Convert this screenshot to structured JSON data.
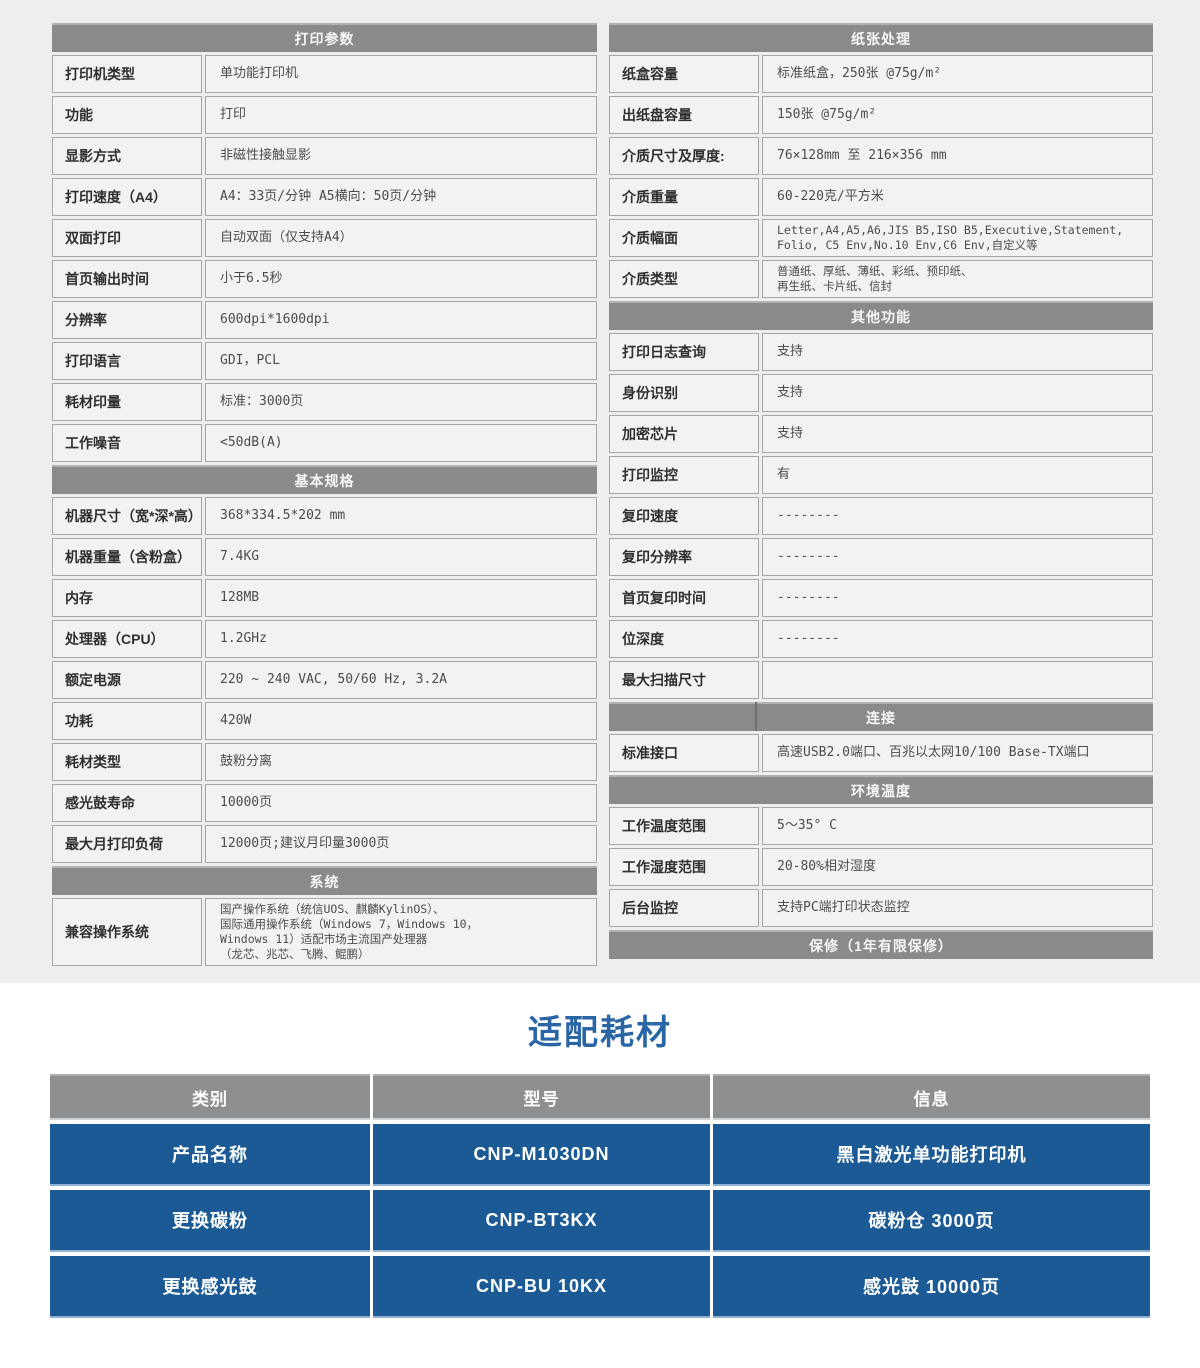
{
  "consumables_title": "适配耗材",
  "spec_tables": {
    "left": [
      {
        "header": "打印参数",
        "rows": [
          {
            "label": "打印机类型",
            "value": "单功能打印机"
          },
          {
            "label": "功能",
            "value": "打印"
          },
          {
            "label": "显影方式",
            "value": "非磁性接触显影"
          },
          {
            "label": "打印速度（A4）",
            "value": "A4：33页/分钟  A5横向：50页/分钟"
          },
          {
            "label": "双面打印",
            "value": "自动双面（仅支持A4）"
          },
          {
            "label": "首页输出时间",
            "value": "小于6.5秒"
          },
          {
            "label": "分辨率",
            "value": "600dpi*1600dpi"
          },
          {
            "label": "打印语言",
            "value": "GDI，PCL"
          },
          {
            "label": "耗材印量",
            "value": "标准：3000页"
          },
          {
            "label": "工作噪音",
            "value": "<50dB(A)"
          }
        ]
      },
      {
        "header": "基本规格",
        "rows": [
          {
            "label": "机器尺寸（宽*深*高）",
            "value": "368*334.5*202 mm"
          },
          {
            "label": "机器重量（含粉盒）",
            "value": "7.4KG"
          },
          {
            "label": "内存",
            "value": "128MB"
          },
          {
            "label": "处理器（CPU）",
            "value": "1.2GHz"
          },
          {
            "label": "额定电源",
            "value": "220 ~ 240 VAC, 50/60 Hz, 3.2A"
          },
          {
            "label": "功耗",
            "value": "420W"
          },
          {
            "label": "耗材类型",
            "value": "鼓粉分离"
          },
          {
            "label": "感光鼓寿命",
            "value": "10000页"
          },
          {
            "label": "最大月打印负荷",
            "value": "12000页;建议月印量3000页"
          }
        ]
      },
      {
        "header": "系统",
        "rows": [
          {
            "label": "兼容操作系统",
            "value": "国产操作系统（统信UOS、麒麟KylinOS）、\n国际通用操作系统（Windows 7，Windows 10，\nWindows 11）适配市场主流国产处理器\n（龙芯、兆芯、飞腾、鲲鹏）",
            "small": true,
            "tall": true
          }
        ]
      }
    ],
    "right": [
      {
        "header": "纸张处理",
        "rows": [
          {
            "label": "纸盒容量",
            "value": "标准纸盒，250张 @75g/m²"
          },
          {
            "label": "出纸盘容量",
            "value": "150张 @75g/m²"
          },
          {
            "label": "介质尺寸及厚度:",
            "value": "76×128mm 至 216×356 mm"
          },
          {
            "label": "介质重量",
            "value": "60-220克/平方米"
          },
          {
            "label": "介质幅面",
            "value": "Letter,A4,A5,A6,JIS B5,ISO B5,Executive,Statement,\nFolio, C5 Env,No.10 Env,C6 Env,自定义等",
            "small": true
          },
          {
            "label": "介质类型",
            "value": "普通纸、厚纸、薄纸、彩纸、预印纸、\n再生纸、卡片纸、信封",
            "small": true
          }
        ]
      },
      {
        "header": "其他功能",
        "rows": [
          {
            "label": "打印日志查询",
            "value": "支持"
          },
          {
            "label": "身份识别",
            "value": "支持"
          },
          {
            "label": "加密芯片",
            "value": "支持"
          },
          {
            "label": "打印监控",
            "value": "有"
          },
          {
            "label": "复印速度",
            "value": "--------"
          },
          {
            "label": "复印分辨率",
            "value": "--------"
          },
          {
            "label": "首页复印时间",
            "value": "--------"
          },
          {
            "label": "位深度",
            "value": "--------"
          },
          {
            "label": "最大扫描尺寸",
            "value": ""
          }
        ]
      },
      {
        "header": "连接",
        "split": true,
        "rows": [
          {
            "label": "标准接口",
            "value": "高速USB2.0端口、百兆以太网10/100 Base-TX端口"
          }
        ]
      },
      {
        "header": "环境温度",
        "rows": [
          {
            "label": "工作温度范围",
            "value": "5～35° C"
          },
          {
            "label": "工作湿度范围",
            "value": "20-80%相对湿度"
          },
          {
            "label": "后台监控",
            "value": "支持PC端打印状态监控"
          }
        ]
      },
      {
        "header": "保修（1年有限保修）",
        "rows": []
      }
    ]
  },
  "consumables_table": {
    "columns": [
      "类别",
      "型号",
      "信息"
    ],
    "rows": [
      [
        "产品名称",
        "CNP-M1030DN",
        "黑白激光单功能打印机"
      ],
      [
        "更换碳粉",
        "CNP-BT3KX",
        "碳粉仓 3000页"
      ],
      [
        "更换感光鼓",
        "CNP-BU 10KX",
        "感光鼓 10000页"
      ]
    ]
  },
  "colors": {
    "band_bg": "#efeeec",
    "row_bg": "#f3f2f0",
    "row_border": "#a6a6a6",
    "section_header_bg": "#8a8a8a",
    "header_text": "#f7f7f7",
    "label_text": "#2f2f2f",
    "value_text": "#4c4c4c",
    "title_blue": "#2a66a5",
    "consumables_header_bg": "#8f8f8f",
    "consumables_row_bg": "#1b5a94"
  }
}
